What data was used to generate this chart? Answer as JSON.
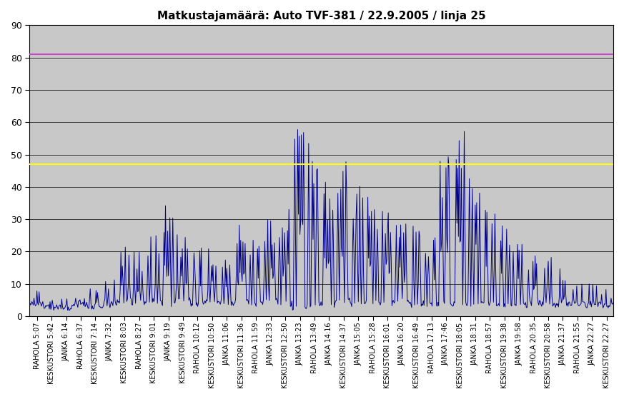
{
  "title": "Matkustajamäärä: Auto TVF-381 / 22.9.2005 / linja 25",
  "ylim": [
    0,
    90
  ],
  "yticks": [
    0,
    10,
    20,
    30,
    40,
    50,
    60,
    70,
    80,
    90
  ],
  "hline_pink": 81,
  "hline_yellow": 47,
  "hline_pink_color": "#cc44cc",
  "hline_yellow_color": "#ffff00",
  "line_color": "#00008B",
  "bg_color": "#C8C8C8",
  "line_width": 0.7,
  "x_labels": [
    "RAHOLA 5:07",
    "KESKUSTORI 5:42",
    "JANKA 6:14",
    "RAHOLA 6:37",
    "KESKUSTORI 7:14",
    "JANKA 7:32",
    "KESKUSTORI 8:03",
    "RAHOLA 8:27",
    "KESKUSTORI 9:01",
    "JANKA 9:19",
    "KESKUSTORI 9:49",
    "RAHOLA 10:12",
    "KESKUSTORI 10:50",
    "JANKA 11:06",
    "KESKUSTORI 11:36",
    "RAHOLA 11:59",
    "JANKA 12:33",
    "KESKUSTORI 12:50",
    "JANKA 13:23",
    "RAHOLA 13:49",
    "JANKA 14:16",
    "KESKUSTORI 14:37",
    "JANKA 15:05",
    "RAHOLA 15:28",
    "KESKUSTORI 16:01",
    "JANKA 16:20",
    "KESKUSTORI 16:49",
    "RAHOLA 17:13",
    "JANKA 17:46",
    "KESKUSTORI 18:05",
    "JANKA 18:31",
    "RAHOLA 18:57",
    "KESKUSTORI 19:38",
    "JANKA 19:58",
    "RAHOLA 20:35",
    "KESKUSTORI 20:58",
    "JANKA 21:37",
    "RAHOLA 21:55",
    "JANKA 22:27",
    "KESKUSTORI 22:27"
  ],
  "title_fontsize": 11
}
